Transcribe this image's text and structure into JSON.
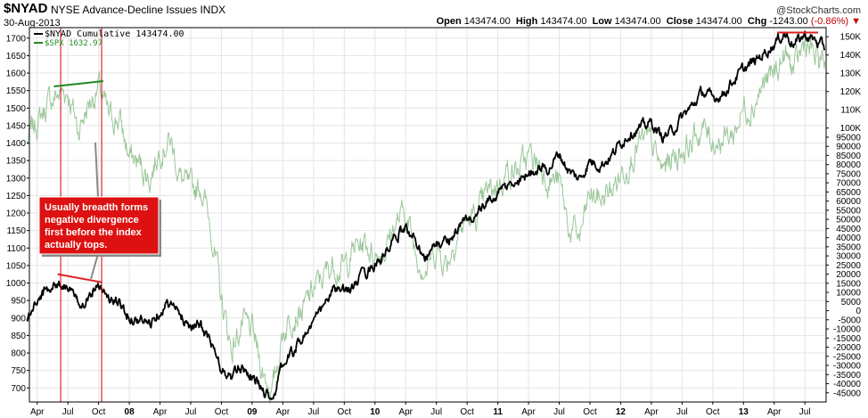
{
  "header": {
    "symbol": "$NYAD",
    "name": "NYSE Advance-Decline Issues",
    "exchange": "INDX",
    "date": "30-Aug-2013",
    "brand": "@StockCharts.com",
    "open_label": "Open",
    "open": "143474.00",
    "high_label": "High",
    "high": "143474.00",
    "low_label": "Low",
    "low": "143474.00",
    "close_label": "Close",
    "close": "143474.00",
    "chg_label": "Chg",
    "chg": "-1243.00",
    "chg_pct": "(-0.86%)"
  },
  "legend": {
    "nyad": "$NYAD Cumulative 143474.00",
    "spx": "$SPX 1632.97"
  },
  "annotation": {
    "lines": [
      "Usually breadth forms",
      "negative divergence",
      "first before the index",
      "actually tops."
    ]
  },
  "colors": {
    "nyad": "#000000",
    "spx": "#9cc79a",
    "divergence_green": "#1f8a1f",
    "divergence_red": "#e02020",
    "marker": "#cc0000",
    "annotation_bg": "#dd1111",
    "grid": "#e4e4e4",
    "chg_down": "#c00000"
  },
  "chart_data": {
    "type": "line",
    "title": "$NYAD NYSE Advance-Decline Issues INDX",
    "x_range": [
      "2007-04",
      "2013-08-30"
    ],
    "y_left": {
      "label": "",
      "range": [
        660,
        1730
      ],
      "ticks": [
        700,
        750,
        800,
        850,
        900,
        950,
        1000,
        1050,
        1100,
        1150,
        1200,
        1250,
        1300,
        1350,
        1400,
        1450,
        1500,
        1550,
        1600,
        1650,
        1700
      ]
    },
    "y_right": {
      "label": "",
      "range": [
        -50000,
        155000
      ],
      "ticks": [
        -45000,
        -40000,
        -35000,
        -30000,
        -25000,
        -20000,
        -15000,
        -10000,
        -5000,
        0,
        5000,
        10000,
        15000,
        20000,
        25000,
        30000,
        35000,
        40000,
        45000,
        50000,
        55000,
        60000,
        65000,
        70000,
        75000,
        80000,
        85000,
        90000,
        95000,
        100000,
        110000,
        120000,
        130000,
        140000,
        150000
      ],
      "tick_labels": [
        "-45000",
        "-40000",
        "-35000",
        "-30000",
        "-25000",
        "-20000",
        "-15000",
        "-10000",
        "-5000",
        "0",
        "5000",
        "10000",
        "15000",
        "20000",
        "25000",
        "30000",
        "35000",
        "40000",
        "45000",
        "50000",
        "55000",
        "60000",
        "65000",
        "70000",
        "75000",
        "80000",
        "85000",
        "90000",
        "95000",
        "100K",
        "110K",
        "120K",
        "130K",
        "140K",
        "150K"
      ]
    },
    "x_ticks": [
      {
        "t": "2007-04",
        "label": "Apr",
        "bold": false
      },
      {
        "t": "2007-07",
        "label": "Jul",
        "bold": false
      },
      {
        "t": "2007-10",
        "label": "Oct",
        "bold": false
      },
      {
        "t": "2008-01",
        "label": "08",
        "bold": true
      },
      {
        "t": "2008-04",
        "label": "Apr",
        "bold": false
      },
      {
        "t": "2008-07",
        "label": "Jul",
        "bold": false
      },
      {
        "t": "2008-10",
        "label": "Oct",
        "bold": false
      },
      {
        "t": "2009-01",
        "label": "09",
        "bold": true
      },
      {
        "t": "2009-04",
        "label": "Apr",
        "bold": false
      },
      {
        "t": "2009-07",
        "label": "Jul",
        "bold": false
      },
      {
        "t": "2009-10",
        "label": "Oct",
        "bold": false
      },
      {
        "t": "2010-01",
        "label": "10",
        "bold": true
      },
      {
        "t": "2010-04",
        "label": "Apr",
        "bold": false
      },
      {
        "t": "2010-07",
        "label": "Jul",
        "bold": false
      },
      {
        "t": "2010-10",
        "label": "Oct",
        "bold": false
      },
      {
        "t": "2011-01",
        "label": "11",
        "bold": true
      },
      {
        "t": "2011-04",
        "label": "Apr",
        "bold": false
      },
      {
        "t": "2011-07",
        "label": "Jul",
        "bold": false
      },
      {
        "t": "2011-10",
        "label": "Oct",
        "bold": false
      },
      {
        "t": "2012-01",
        "label": "12",
        "bold": true
      },
      {
        "t": "2012-04",
        "label": "Apr",
        "bold": false
      },
      {
        "t": "2012-07",
        "label": "Jul",
        "bold": false
      },
      {
        "t": "2012-10",
        "label": "Oct",
        "bold": false
      },
      {
        "t": "2013-01",
        "label": "13",
        "bold": true
      },
      {
        "t": "2013-04",
        "label": "Apr",
        "bold": false
      },
      {
        "t": "2013-07",
        "label": "Jul",
        "bold": false
      }
    ],
    "series": [
      {
        "name": "$NYAD Cumulative",
        "axis": "right",
        "points": [
          [
            "2007-03",
            -5000
          ],
          [
            "2007-04",
            5000
          ],
          [
            "2007-05",
            12000
          ],
          [
            "2007-06",
            15000
          ],
          [
            "2007-07",
            14000
          ],
          [
            "2007-08",
            3000
          ],
          [
            "2007-09",
            8000
          ],
          [
            "2007-10",
            16000
          ],
          [
            "2007-11",
            6000
          ],
          [
            "2007-12",
            4000
          ],
          [
            "2008-01",
            -3000
          ],
          [
            "2008-02",
            -5000
          ],
          [
            "2008-03",
            -7000
          ],
          [
            "2008-04",
            1000
          ],
          [
            "2008-05",
            4000
          ],
          [
            "2008-06",
            -3000
          ],
          [
            "2008-07",
            -8000
          ],
          [
            "2008-08",
            -9000
          ],
          [
            "2008-09",
            -18000
          ],
          [
            "2008-10",
            -33000
          ],
          [
            "2008-11",
            -37000
          ],
          [
            "2008-12",
            -30000
          ],
          [
            "2009-01",
            -36000
          ],
          [
            "2009-02",
            -43000
          ],
          [
            "2009-03",
            -48000
          ],
          [
            "2009-04",
            -30000
          ],
          [
            "2009-05",
            -22000
          ],
          [
            "2009-06",
            -14000
          ],
          [
            "2009-07",
            -6000
          ],
          [
            "2009-08",
            2000
          ],
          [
            "2009-09",
            12000
          ],
          [
            "2009-10",
            10000
          ],
          [
            "2009-11",
            14000
          ],
          [
            "2009-12",
            20000
          ],
          [
            "2010-01",
            26000
          ],
          [
            "2010-02",
            30000
          ],
          [
            "2010-03",
            40000
          ],
          [
            "2010-04",
            45000
          ],
          [
            "2010-05",
            38000
          ],
          [
            "2010-06",
            30000
          ],
          [
            "2010-07",
            36000
          ],
          [
            "2010-08",
            38000
          ],
          [
            "2010-09",
            44000
          ],
          [
            "2010-10",
            50000
          ],
          [
            "2010-11",
            53000
          ],
          [
            "2010-12",
            59000
          ],
          [
            "2011-01",
            64000
          ],
          [
            "2011-02",
            68000
          ],
          [
            "2011-03",
            70000
          ],
          [
            "2011-04",
            76000
          ],
          [
            "2011-05",
            78000
          ],
          [
            "2011-06",
            78000
          ],
          [
            "2011-07",
            86000
          ],
          [
            "2011-08",
            76000
          ],
          [
            "2011-09",
            72000
          ],
          [
            "2011-10",
            82000
          ],
          [
            "2011-11",
            80000
          ],
          [
            "2011-12",
            84000
          ],
          [
            "2012-01",
            92000
          ],
          [
            "2012-02",
            98000
          ],
          [
            "2012-03",
            100000
          ],
          [
            "2012-04",
            103000
          ],
          [
            "2012-05",
            95000
          ],
          [
            "2012-06",
            98000
          ],
          [
            "2012-07",
            106000
          ],
          [
            "2012-08",
            112000
          ],
          [
            "2012-09",
            120000
          ],
          [
            "2012-10",
            116000
          ],
          [
            "2012-11",
            119000
          ],
          [
            "2012-12",
            126000
          ],
          [
            "2013-01",
            132000
          ],
          [
            "2013-02",
            136000
          ],
          [
            "2013-03",
            141000
          ],
          [
            "2013-04",
            146000
          ],
          [
            "2013-05",
            152000
          ],
          [
            "2013-06",
            146000
          ],
          [
            "2013-07",
            151000
          ],
          [
            "2013-08",
            148000
          ],
          [
            "2013-08-30",
            143474
          ]
        ]
      },
      {
        "name": "$SPX",
        "axis": "left",
        "points": [
          [
            "2007-03",
            1400
          ],
          [
            "2007-04",
            1460
          ],
          [
            "2007-05",
            1510
          ],
          [
            "2007-06",
            1540
          ],
          [
            "2007-07",
            1550
          ],
          [
            "2007-08",
            1440
          ],
          [
            "2007-09",
            1510
          ],
          [
            "2007-10",
            1560
          ],
          [
            "2007-11",
            1470
          ],
          [
            "2007-12",
            1470
          ],
          [
            "2008-01",
            1360
          ],
          [
            "2008-02",
            1340
          ],
          [
            "2008-03",
            1300
          ],
          [
            "2008-04",
            1390
          ],
          [
            "2008-05",
            1410
          ],
          [
            "2008-06",
            1300
          ],
          [
            "2008-07",
            1260
          ],
          [
            "2008-08",
            1280
          ],
          [
            "2008-09",
            1160
          ],
          [
            "2008-10",
            950
          ],
          [
            "2008-11",
            810
          ],
          [
            "2008-12",
            880
          ],
          [
            "2009-01",
            860
          ],
          [
            "2009-02",
            750
          ],
          [
            "2009-03",
            690
          ],
          [
            "2009-04",
            860
          ],
          [
            "2009-05",
            920
          ],
          [
            "2009-06",
            920
          ],
          [
            "2009-07",
            980
          ],
          [
            "2009-08",
            1020
          ],
          [
            "2009-09",
            1060
          ],
          [
            "2009-10",
            1040
          ],
          [
            "2009-11",
            1100
          ],
          [
            "2009-12",
            1115
          ],
          [
            "2010-01",
            1080
          ],
          [
            "2010-02",
            1100
          ],
          [
            "2010-03",
            1170
          ],
          [
            "2010-04",
            1200
          ],
          [
            "2010-05",
            1090
          ],
          [
            "2010-06",
            1040
          ],
          [
            "2010-07",
            1100
          ],
          [
            "2010-08",
            1060
          ],
          [
            "2010-09",
            1140
          ],
          [
            "2010-10",
            1180
          ],
          [
            "2010-11",
            1190
          ],
          [
            "2010-12",
            1255
          ],
          [
            "2011-01",
            1285
          ],
          [
            "2011-02",
            1325
          ],
          [
            "2011-03",
            1320
          ],
          [
            "2011-04",
            1360
          ],
          [
            "2011-05",
            1345
          ],
          [
            "2011-06",
            1300
          ],
          [
            "2011-07",
            1290
          ],
          [
            "2011-08",
            1150
          ],
          [
            "2011-09",
            1130
          ],
          [
            "2011-10",
            1250
          ],
          [
            "2011-11",
            1240
          ],
          [
            "2011-12",
            1260
          ],
          [
            "2012-01",
            1310
          ],
          [
            "2012-02",
            1365
          ],
          [
            "2012-03",
            1400
          ],
          [
            "2012-04",
            1395
          ],
          [
            "2012-05",
            1320
          ],
          [
            "2012-06",
            1360
          ],
          [
            "2012-07",
            1380
          ],
          [
            "2012-08",
            1405
          ],
          [
            "2012-09",
            1440
          ],
          [
            "2012-10",
            1410
          ],
          [
            "2012-11",
            1415
          ],
          [
            "2012-12",
            1425
          ],
          [
            "2013-01",
            1500
          ],
          [
            "2013-02",
            1515
          ],
          [
            "2013-03",
            1570
          ],
          [
            "2013-04",
            1595
          ],
          [
            "2013-05",
            1650
          ],
          [
            "2013-06",
            1605
          ],
          [
            "2013-07",
            1690
          ],
          [
            "2013-08",
            1640
          ],
          [
            "2013-08-30",
            1632.97
          ]
        ]
      }
    ],
    "legend_position": "top-left",
    "grid": true
  }
}
